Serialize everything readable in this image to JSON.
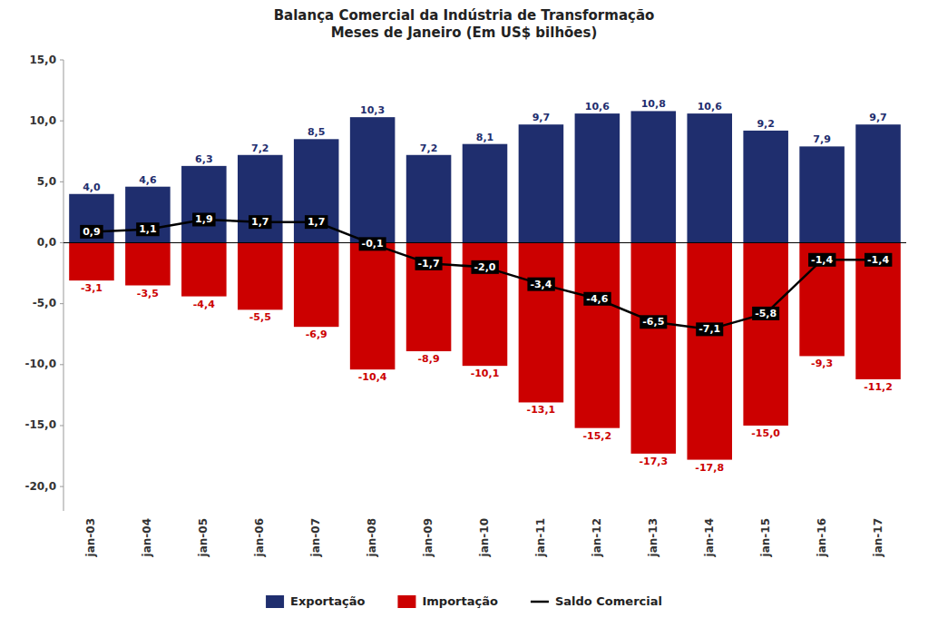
{
  "chart_data": {
    "type": "bar",
    "title": "Balança Comercial da Indústria de Transformação\nMeses de Janeiro (Em US$ bilhões)",
    "categories": [
      "jan-03",
      "jan-04",
      "jan-05",
      "jan-06",
      "jan-07",
      "jan-08",
      "jan-09",
      "jan-10",
      "jan-11",
      "jan-12",
      "jan-13",
      "jan-14",
      "jan-15",
      "jan-16",
      "jan-17"
    ],
    "stacked": true,
    "data_labels": true,
    "grid": false,
    "legend": "bottom",
    "series": [
      {
        "name": "Exportação",
        "type": "bar",
        "color": "#1F2E6E",
        "values": [
          4.0,
          4.6,
          6.3,
          7.2,
          8.5,
          10.3,
          7.2,
          8.1,
          9.7,
          10.6,
          10.8,
          10.6,
          9.2,
          7.9,
          9.7
        ],
        "value_labels": [
          "4,0",
          "4,6",
          "6,3",
          "7,2",
          "8,5",
          "10,3",
          "7,2",
          "8,1",
          "9,7",
          "10,6",
          "10,8",
          "10,6",
          "9,2",
          "7,9",
          "9,7"
        ]
      },
      {
        "name": "Importação",
        "type": "bar",
        "color": "#CC0000",
        "values": [
          -3.1,
          -3.5,
          -4.4,
          -5.5,
          -6.9,
          -10.4,
          -8.9,
          -10.1,
          -13.1,
          -15.2,
          -17.3,
          -17.8,
          -15.0,
          -9.3,
          -11.2
        ],
        "value_labels": [
          "-3,1",
          "-3,5",
          "-4,4",
          "-5,5",
          "-6,9",
          "-10,4",
          "-8,9",
          "-10,1",
          "-13,1",
          "-15,2",
          "-17,3",
          "-17,8",
          "-15,0",
          "-9,3",
          "-11,2"
        ]
      },
      {
        "name": "Saldo Comercial",
        "type": "line",
        "color": "#000000",
        "values": [
          0.9,
          1.1,
          1.9,
          1.7,
          1.7,
          -0.1,
          -1.7,
          -2.0,
          -3.4,
          -4.6,
          -6.5,
          -7.1,
          -5.8,
          -1.4,
          -1.4
        ],
        "value_labels": [
          "0,9",
          "1,1",
          "1,9",
          "1,7",
          "1,7",
          "-0,1",
          "-1,7",
          "-2,0",
          "-3,4",
          "-4,6",
          "-6,5",
          "-7,1",
          "-5,8",
          "-1,4",
          "-1,4"
        ]
      }
    ],
    "ylim": [
      -22,
      15
    ],
    "yticks": [
      {
        "value": -20.0,
        "label": "-20,0"
      },
      {
        "value": -15.0,
        "label": "-15,0"
      },
      {
        "value": -10.0,
        "label": "-10,0"
      },
      {
        "value": -5.0,
        "label": "-5,0"
      },
      {
        "value": 0.0,
        "label": "0,0"
      },
      {
        "value": 5.0,
        "label": "5,0"
      },
      {
        "value": 10.0,
        "label": "10,0"
      },
      {
        "value": 15.0,
        "label": "15,0"
      }
    ]
  }
}
